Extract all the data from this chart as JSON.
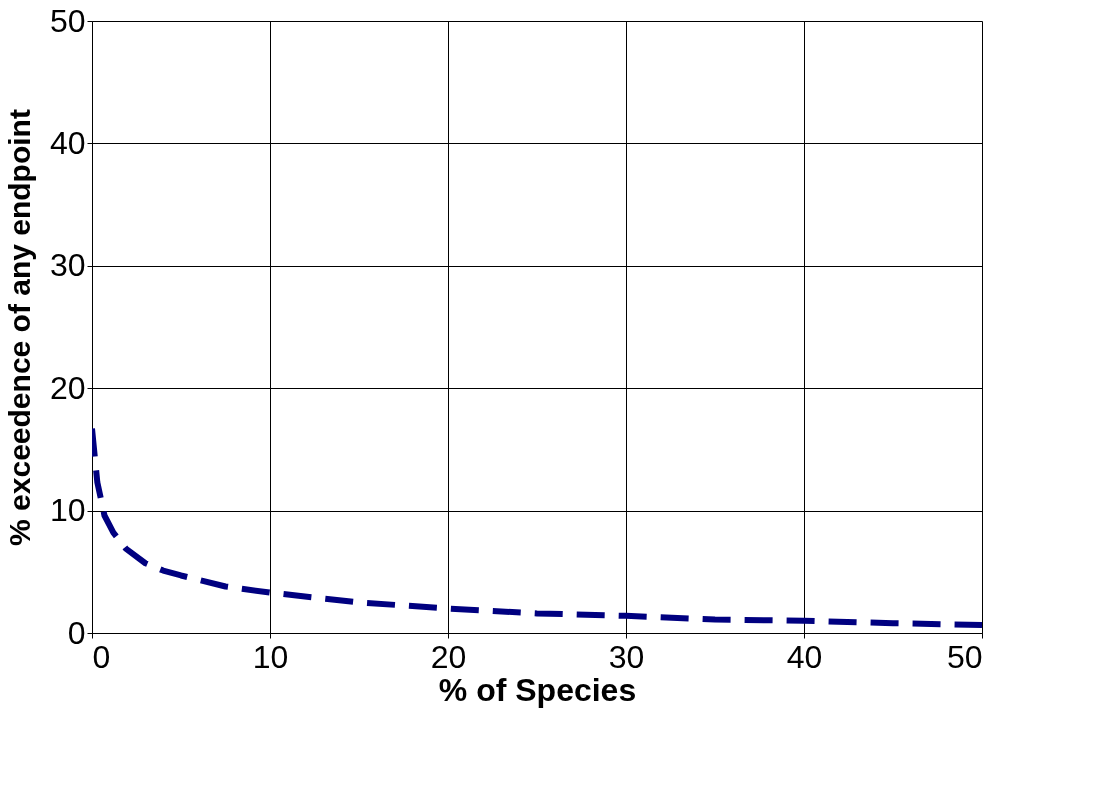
{
  "chart_data": {
    "type": "line",
    "xlabel": "% of Species",
    "ylabel": "% exceedence of any endpoint",
    "xlim": [
      0,
      50
    ],
    "xticks": [
      0,
      10,
      20,
      30,
      40,
      50
    ],
    "ylim": [
      0,
      50
    ],
    "yticks": [
      0,
      10,
      20,
      30,
      40,
      50
    ],
    "grid": true,
    "line_style": "dashed",
    "series": [
      {
        "color": "#000080",
        "x": [
          0,
          0.3,
          0.7,
          1.2,
          1.9,
          3,
          4,
          5,
          7.5,
          10,
          15,
          20,
          25,
          30,
          35,
          40,
          45,
          50
        ],
        "values": [
          16.7,
          12.3,
          9.6,
          8.2,
          6.9,
          5.7,
          5.1,
          4.7,
          3.8,
          3.3,
          2.5,
          2.0,
          1.6,
          1.4,
          1.1,
          1.0,
          0.8,
          0.65
        ]
      }
    ]
  }
}
